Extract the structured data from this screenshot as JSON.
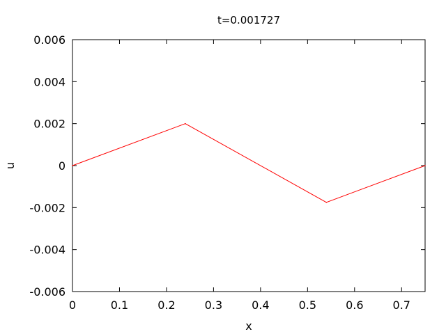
{
  "chart_data": {
    "type": "line",
    "title": "t=0.001727",
    "xlabel": "x",
    "ylabel": "u",
    "xlim": [
      0,
      0.75
    ],
    "ylim": [
      -0.006,
      0.006
    ],
    "xticks": [
      0,
      0.1,
      0.2,
      0.3,
      0.4,
      0.5,
      0.6,
      0.7
    ],
    "xtick_labels": [
      "0",
      "0.1",
      "0.2",
      "0.3",
      "0.4",
      "0.5",
      "0.6",
      "0.7"
    ],
    "yticks": [
      -0.006,
      -0.004,
      -0.002,
      0,
      0.002,
      0.004,
      0.006
    ],
    "ytick_labels": [
      "-0.006",
      "-0.004",
      "-0.002",
      "0",
      "0.002",
      "0.004",
      "0.006"
    ],
    "grid": false,
    "series": [
      {
        "color": "#ff0000",
        "points": [
          {
            "x": 0,
            "y": 0
          },
          {
            "x": 0.24,
            "y": 0.002
          },
          {
            "x": 0.54,
            "y": -0.00175
          },
          {
            "x": 0.75,
            "y": 0
          }
        ]
      }
    ]
  }
}
